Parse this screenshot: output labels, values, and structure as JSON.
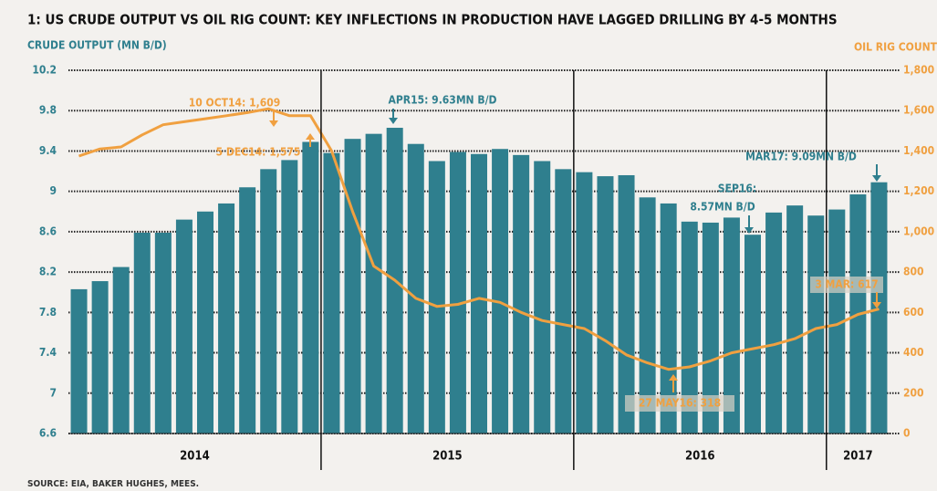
{
  "chart_data": {
    "type": "bar",
    "title": "1: US CRUDE OUTPUT VS OIL RIG COUNT: KEY INFLECTIONS IN PRODUCTION HAVE LAGGED DRILLING BY 4-5 MONTHS",
    "y_label": "CRUDE OUTPUT (MN B/D)",
    "y2_label": "OIL RIG COUNT",
    "source": "SOURCE: EIA, BAKER HUGHES, MEES.",
    "categories": [
      null,
      null,
      null,
      null,
      null,
      null,
      null,
      null,
      null,
      null,
      null,
      null,
      null,
      null,
      null,
      null,
      null,
      null,
      null,
      null,
      null,
      null,
      null,
      null,
      null,
      null,
      null,
      null,
      null,
      null,
      null,
      null,
      null,
      null,
      null,
      null,
      null,
      null,
      null
    ],
    "years": [
      "2014",
      "2015",
      "2016",
      "2017"
    ],
    "series": [
      {
        "name": "CRUDE OUTPUT (MN B/D)",
        "color": "#2f7f8e",
        "type": "bar",
        "values": [
          8.03,
          8.11,
          8.25,
          8.59,
          8.59,
          8.72,
          8.8,
          8.88,
          9.04,
          9.22,
          9.31,
          9.49,
          9.38,
          9.52,
          9.57,
          9.63,
          9.47,
          9.3,
          9.39,
          9.37,
          9.42,
          9.36,
          9.3,
          9.22,
          9.19,
          9.15,
          9.16,
          8.94,
          8.88,
          8.7,
          8.69,
          8.74,
          8.57,
          8.79,
          8.86,
          8.76,
          8.82,
          8.97,
          9.09
        ]
      },
      {
        "name": "OIL RIG COUNT",
        "color": "#f0a040",
        "type": "line",
        "axis": "y2",
        "values": [
          1375,
          1410,
          1420,
          1480,
          1530,
          1545,
          1560,
          1575,
          1590,
          1609,
          1575,
          1575,
          1400,
          1100,
          830,
          760,
          670,
          630,
          640,
          670,
          650,
          600,
          560,
          540,
          520,
          460,
          390,
          350,
          318,
          330,
          360,
          400,
          420,
          440,
          470,
          520,
          540,
          590,
          617
        ]
      }
    ],
    "ylim": [
      6.6,
      10.2
    ],
    "yticks": [
      6.6,
      7.0,
      7.4,
      7.8,
      8.2,
      8.6,
      9.0,
      9.4,
      9.8,
      10.2
    ],
    "y2lim": [
      0,
      1800
    ],
    "y2ticks": [
      0,
      200,
      400,
      600,
      800,
      {
        "value": 1000,
        "label": "1,000"
      },
      {
        "value": 1200,
        "label": "1,200"
      },
      {
        "value": 1400,
        "label": "1,400"
      },
      {
        "value": 1600,
        "label": "1,600"
      },
      {
        "value": 1800,
        "label": "1,800"
      }
    ],
    "grid": true,
    "annotations": [
      "10 OCT14: 1,609",
      "5 DEC14: 1,575",
      "APR15: 9.63MN B/D",
      "SEP16:",
      "8.57MN B/D",
      "MAR17: 9.09MN B/D",
      "3 MAR: 617",
      "27 MAY16: 318"
    ]
  }
}
